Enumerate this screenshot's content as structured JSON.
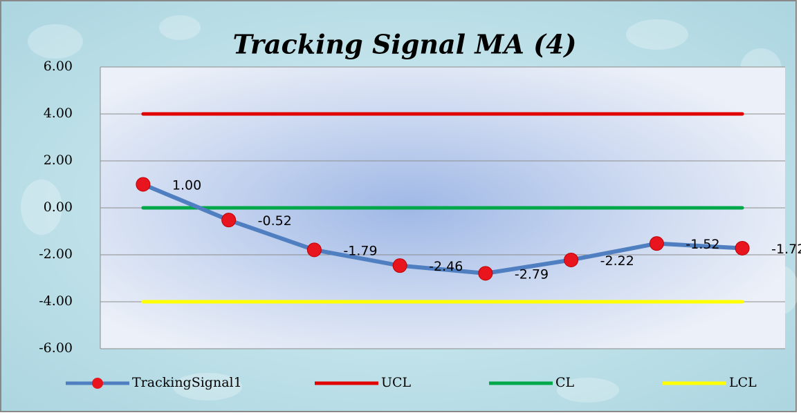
{
  "chart_data": {
    "type": "line",
    "title": "Tracking Signal MA (4)",
    "categories": [
      null,
      null,
      null,
      null,
      null,
      null,
      null,
      null
    ],
    "series": [
      {
        "name": "TrackingSignal1",
        "color": "#4f7fc0",
        "marker_color": "#e8141e",
        "values": [
          1.0,
          -0.52,
          -1.79,
          -2.46,
          -2.79,
          -2.22,
          -1.52,
          -1.72
        ],
        "value_labels": [
          "1.00",
          "-0.52",
          "-1.79",
          "-2.46",
          "-2.79",
          "-2.22",
          "-1.52",
          "-1.72"
        ]
      },
      {
        "name": "UCL",
        "color": "#e00000",
        "values": [
          4,
          4,
          4,
          4,
          4,
          4,
          4,
          4
        ]
      },
      {
        "name": "CL",
        "color": "#00a84a",
        "values": [
          0,
          0,
          0,
          0,
          0,
          0,
          0,
          0
        ]
      },
      {
        "name": "LCL",
        "color": "#ffff00",
        "values": [
          -4,
          -4,
          -4,
          -4,
          -4,
          -4,
          -4,
          -4
        ]
      }
    ],
    "ylim": [
      -6,
      6
    ],
    "yticks": [
      {
        "value": -6,
        "label": "-6.00"
      },
      {
        "value": -4,
        "label": "-4.00"
      },
      {
        "value": -2,
        "label": "-2.00"
      },
      {
        "value": 0,
        "label": "0.00"
      },
      {
        "value": 2,
        "label": "2.00"
      },
      {
        "value": 4,
        "label": "4.00"
      },
      {
        "value": 6,
        "label": "6.00"
      }
    ],
    "grid": true,
    "legend": "bottom"
  }
}
